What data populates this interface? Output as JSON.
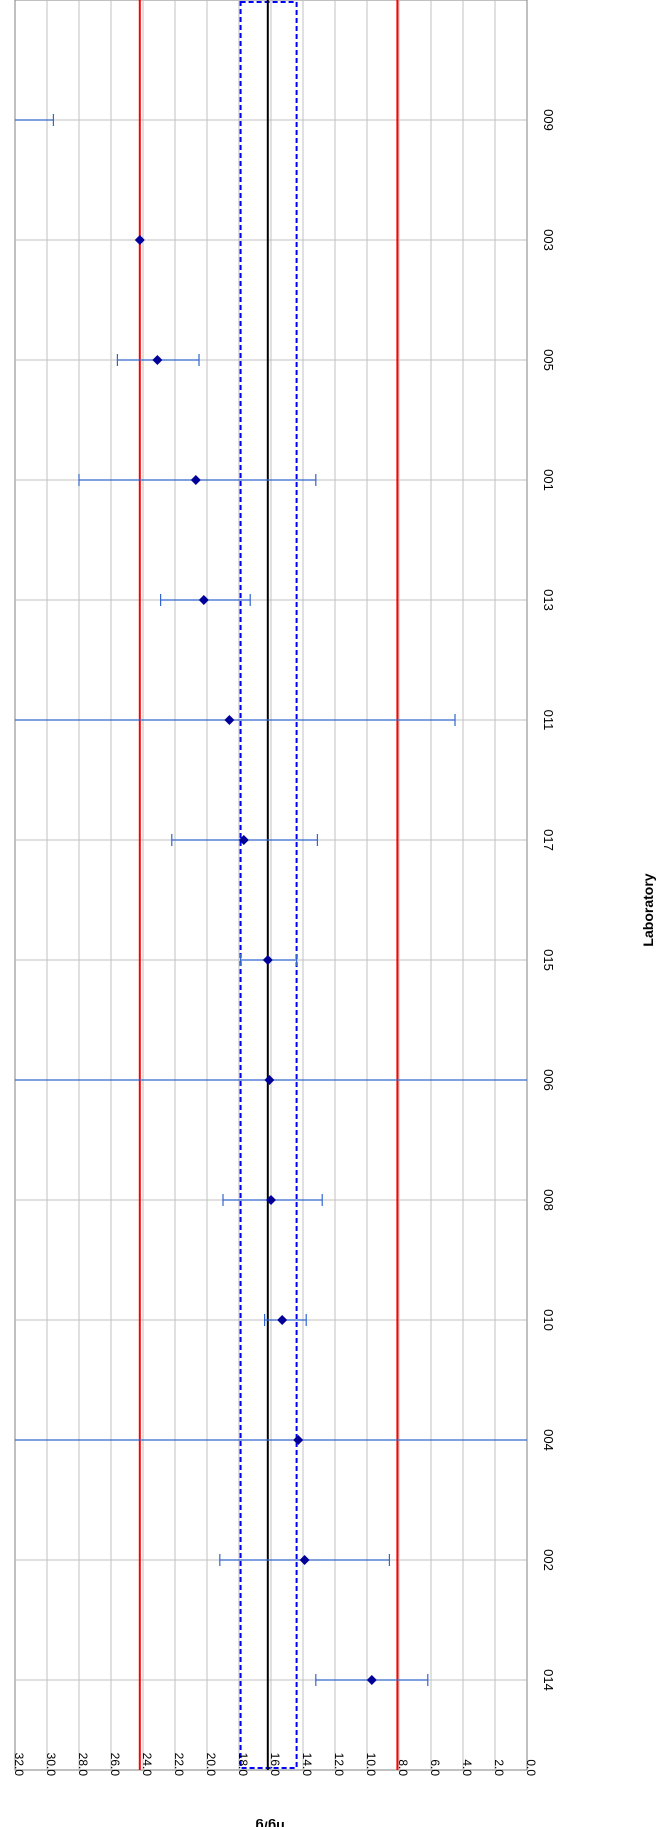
{
  "chart_data": {
    "type": "scatter",
    "xlabel": "Laboratory",
    "ylabel": "ng/g",
    "ylim": [
      0,
      32
    ],
    "ytick_labels": [
      "0.0",
      "2.0",
      "4.0",
      "6.0",
      "8.0",
      "10.0",
      "12.0",
      "14.0",
      "16.0",
      "18.0",
      "20.0",
      "22.0",
      "24.0",
      "26.0",
      "28.0",
      "30.0",
      "32.0"
    ],
    "ytick_values": [
      0,
      2,
      4,
      6,
      8,
      10,
      12,
      14,
      16,
      18,
      20,
      22,
      24,
      26,
      28,
      30,
      32
    ],
    "categories": [
      "014",
      "002",
      "004",
      "010",
      "008",
      "006",
      "015",
      "017",
      "011",
      "013",
      "001",
      "005",
      "003",
      "009"
    ],
    "series": [
      {
        "values": [
          9.7,
          13.9,
          14.3,
          15.3,
          16.0,
          16.1,
          16.2,
          17.7,
          18.6,
          20.2,
          20.7,
          23.1,
          24.2,
          null
        ],
        "lower": [
          6.2,
          8.6,
          0.0,
          13.8,
          12.8,
          0.0,
          14.4,
          13.1,
          4.5,
          17.3,
          13.2,
          20.5,
          null,
          29.6
        ],
        "upper": [
          13.2,
          19.2,
          32.0,
          16.4,
          19.0,
          32.0,
          17.9,
          22.2,
          32.0,
          22.9,
          28.0,
          25.6,
          null,
          32.0
        ]
      }
    ],
    "reference_lines": {
      "assigned_value": 16.2,
      "lower_limit": 8.1,
      "upper_limit": 24.2
    },
    "uncertainty_band": [
      14.4,
      17.9
    ],
    "colors": {
      "limits": "#ff0000",
      "assigned": "#000000",
      "band": "#0000ff",
      "points": "#000099",
      "errorbars": "#3366cc",
      "grid": "#c0c0c0"
    },
    "grid": true,
    "orientation": "rotated 90° clockwise"
  }
}
